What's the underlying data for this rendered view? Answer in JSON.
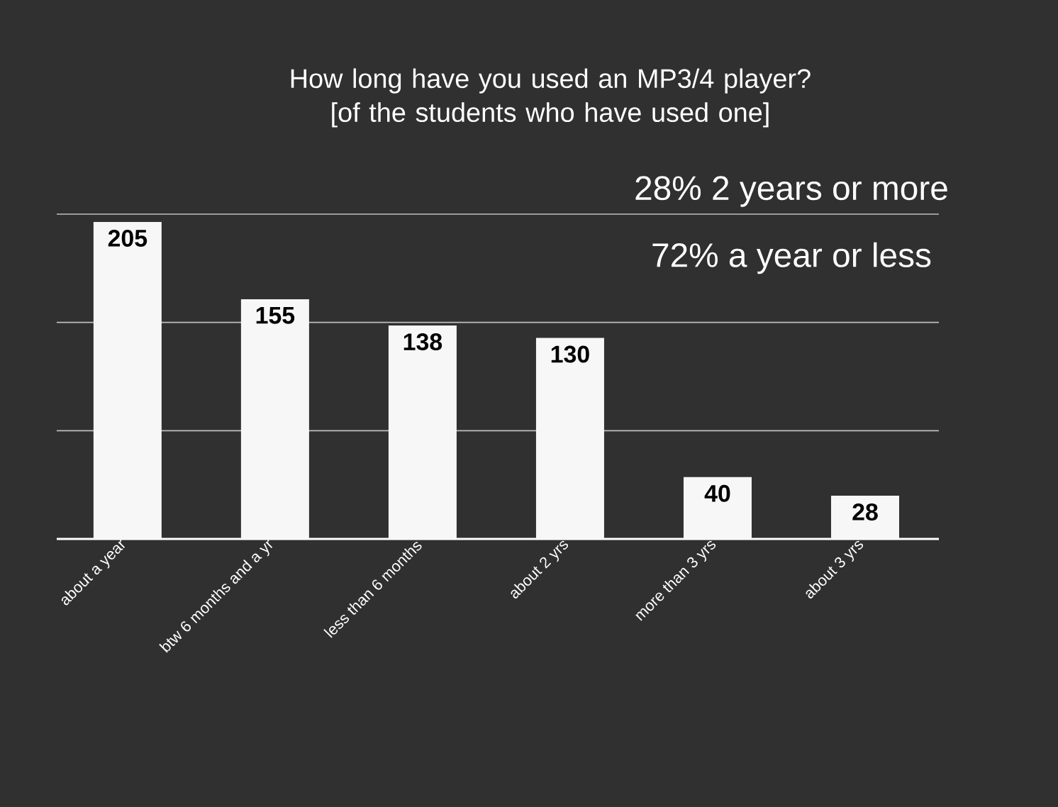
{
  "chart_data": {
    "type": "bar",
    "title": "How long have you used an MP3/4 player? [of the students who have used one]",
    "categories": [
      "about a year",
      "btw 6 months and a yr",
      "less than 6 months",
      "about 2 yrs",
      "more than 3 yrs",
      "about 3 yrs"
    ],
    "values": [
      205,
      155,
      138,
      130,
      40,
      28
    ],
    "color": "#f7f7f7",
    "data_labels": true,
    "ylim": [
      0,
      210
    ],
    "ref_lines": [
      {
        "axis": "y",
        "value": 70,
        "color": "#bebebe"
      },
      {
        "axis": "y",
        "value": 140,
        "color": "#bebebe"
      },
      {
        "axis": "y",
        "value": 210,
        "color": "#bebebe"
      }
    ],
    "tick_labels": "x",
    "annotations": [
      "28% 2 years or more",
      "72% a year or less"
    ]
  }
}
